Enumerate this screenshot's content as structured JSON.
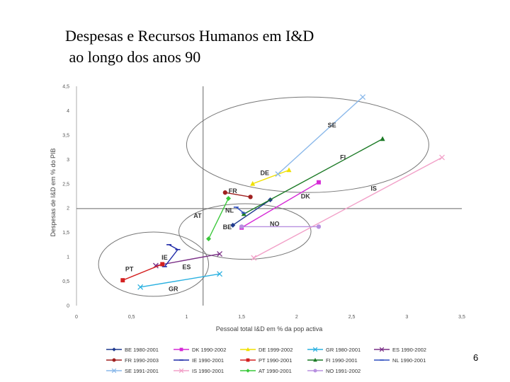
{
  "title": {
    "line1": "Despesas e Recursos Humanos em I&D",
    "line2": " ao longo dos anos 90"
  },
  "page_number": "6",
  "chart_data": {
    "type": "line",
    "xlabel": "Pessoal total I&D em % da pop activa",
    "ylabel": "Despesas de I&D em % do PIB",
    "xlim": [
      0,
      3.5
    ],
    "ylim": [
      0,
      4.5
    ],
    "xticks": [
      0,
      0.5,
      1,
      1.5,
      2,
      2.5,
      3,
      3.5
    ],
    "yticks": [
      0,
      0.5,
      1,
      1.5,
      2,
      2.5,
      3,
      3.5,
      4,
      4.5
    ],
    "x_tick_labels": [
      "0",
      "0,5",
      "1",
      "1,5",
      "2",
      "2,5",
      "3",
      "3,5"
    ],
    "y_tick_labels": [
      "0",
      "0,5",
      "1",
      "1,5",
      "2",
      "2,5",
      "3",
      "3,5",
      "4",
      "4,5"
    ],
    "reference_lines": {
      "x": 1.15,
      "y": 1.99
    },
    "clusters": [
      {
        "name": "high",
        "cx": 2.1,
        "cy": 3.3,
        "rx": 1.1,
        "ry": 0.98
      },
      {
        "name": "middle",
        "cx": 1.53,
        "cy": 1.52,
        "rx": 0.6,
        "ry": 0.57
      },
      {
        "name": "low",
        "cx": 0.7,
        "cy": 0.85,
        "rx": 0.5,
        "ry": 0.66
      }
    ],
    "series": [
      {
        "name": "BE 1980-2001",
        "color": "#1f3a8f",
        "marker": "diamond",
        "points": [
          [
            1.42,
            1.65
          ],
          [
            1.76,
            2.17
          ]
        ],
        "label": "BE",
        "label_at": [
          1.37,
          1.61
        ]
      },
      {
        "name": "DK 1990-2002",
        "color": "#d62ad6",
        "marker": "square",
        "points": [
          [
            1.5,
            1.6
          ],
          [
            2.2,
            2.53
          ]
        ],
        "label": "DK",
        "label_at": [
          2.08,
          2.24
        ]
      },
      {
        "name": "DE 1999-2002",
        "color": "#f0e000",
        "marker": "triangle",
        "points": [
          [
            1.6,
            2.5
          ],
          [
            1.93,
            2.78
          ]
        ],
        "label": "DE",
        "label_at": [
          1.71,
          2.72
        ]
      },
      {
        "name": "GR 1980-2001",
        "color": "#29b0e0",
        "marker": "x",
        "points": [
          [
            0.58,
            0.38
          ],
          [
            1.3,
            0.65
          ]
        ],
        "label": "GR",
        "label_at": [
          0.88,
          0.34
        ]
      },
      {
        "name": "ES 1990-2002",
        "color": "#7a2e86",
        "marker": "x",
        "points": [
          [
            0.72,
            0.82
          ],
          [
            1.3,
            1.06
          ]
        ],
        "label": "ES",
        "label_at": [
          1.0,
          0.79
        ]
      },
      {
        "name": "FR 1990-2003",
        "color": "#a02020",
        "marker": "circle",
        "points": [
          [
            1.35,
            2.32
          ],
          [
            1.58,
            2.23
          ]
        ],
        "label": "FR",
        "label_at": [
          1.42,
          2.35
        ]
      },
      {
        "name": "IE 1990-2001",
        "color": "#1f2aa8",
        "marker": "dash",
        "points": [
          [
            0.84,
            1.25
          ],
          [
            0.92,
            1.15
          ],
          [
            0.8,
            0.8
          ]
        ],
        "label": "IE",
        "label_at": [
          0.8,
          0.99
        ]
      },
      {
        "name": "PT 1990-2001",
        "color": "#d42020",
        "marker": "square",
        "points": [
          [
            0.42,
            0.52
          ],
          [
            0.78,
            0.85
          ]
        ],
        "label": "PT",
        "label_at": [
          0.48,
          0.75
        ]
      },
      {
        "name": "FI 1990-2001",
        "color": "#1c7a26",
        "marker": "triangle",
        "points": [
          [
            1.52,
            1.88
          ],
          [
            2.78,
            3.42
          ]
        ],
        "label": "FI",
        "label_at": [
          2.42,
          3.04
        ]
      },
      {
        "name": "NL 1990-2001",
        "color": "#2f4fbf",
        "marker": "dash",
        "points": [
          [
            1.45,
            2.02
          ],
          [
            1.52,
            1.9
          ]
        ],
        "label": "NL",
        "label_at": [
          1.39,
          1.95
        ]
      },
      {
        "name": "SE 1991-2001",
        "color": "#8ab8ea",
        "marker": "x",
        "points": [
          [
            1.83,
            2.7
          ],
          [
            2.6,
            4.28
          ]
        ],
        "label": "SE",
        "label_at": [
          2.32,
          3.7
        ]
      },
      {
        "name": "IS 1990-2001",
        "color": "#f2a0c8",
        "marker": "x",
        "points": [
          [
            1.61,
            0.98
          ],
          [
            3.32,
            3.04
          ]
        ],
        "label": "IS",
        "label_at": [
          2.7,
          2.4
        ]
      },
      {
        "name": "AT 1990-2001",
        "color": "#3ac83a",
        "marker": "diamond",
        "points": [
          [
            1.2,
            1.37
          ],
          [
            1.38,
            2.2
          ]
        ],
        "label": "AT",
        "label_at": [
          1.1,
          1.84
        ]
      },
      {
        "name": "NO 1991-2002",
        "color": "#b890e0",
        "marker": "circle",
        "points": [
          [
            1.5,
            1.62
          ],
          [
            2.2,
            1.62
          ]
        ],
        "label": "NO",
        "label_at": [
          1.8,
          1.68
        ]
      }
    ]
  }
}
